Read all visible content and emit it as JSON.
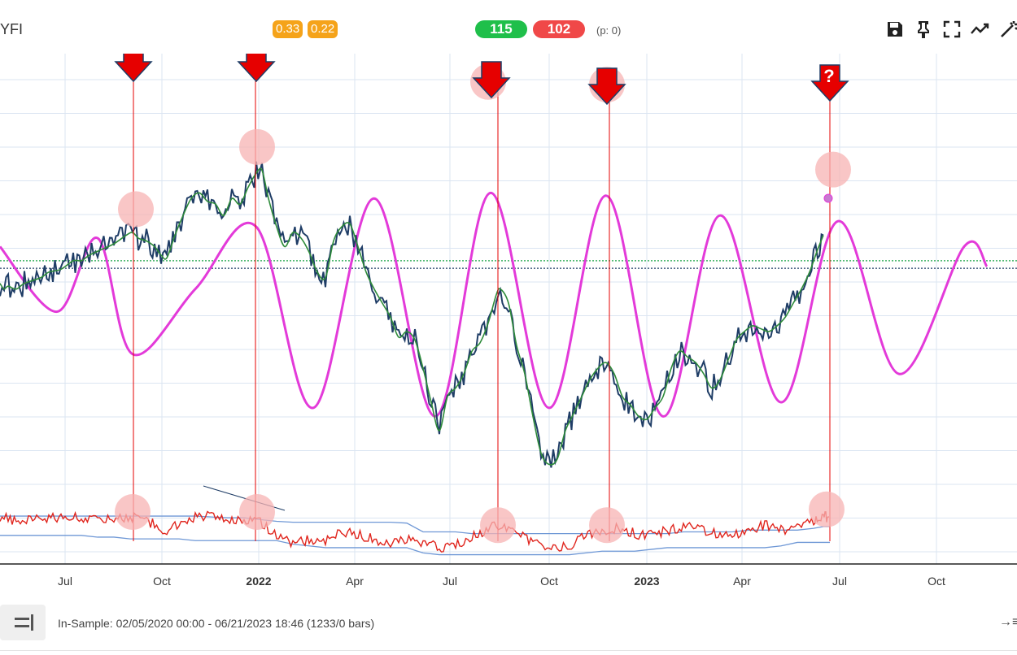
{
  "header": {
    "symbol": "YFI",
    "badges": [
      "0.33",
      "0.22"
    ],
    "long_count": "115",
    "short_count": "102",
    "p_label": "(p: 0)",
    "colors": {
      "orange": "#f5a31a",
      "green": "#1fbf4a",
      "red": "#f04848"
    },
    "toolbar_icons": [
      "save-icon",
      "pin-icon",
      "fullscreen-icon",
      "trend-icon",
      "magic-wand-icon"
    ]
  },
  "footer": {
    "in_sample": "In-Sample: 02/05/2020 00:00 - 06/21/2023 18:46 (1233/0 bars)",
    "menu_icon": "menu-lines-icon",
    "end_icon": "arrow-to-end-icon"
  },
  "chart_data": {
    "type": "line",
    "x_ticks": [
      "Jul",
      "Oct",
      "2022",
      "Apr",
      "Jul",
      "Oct",
      "2023",
      "Apr",
      "Jul",
      "Oct"
    ],
    "bold_ticks": [
      "2022",
      "2023"
    ],
    "colors": {
      "price": "#1f3d66",
      "smooth": "#2e8b3a",
      "cycle": "#e33ad9",
      "oscillator": "#e0251d",
      "bands": "#6f98d6",
      "markers": "#e60000",
      "highlight": "#f7b3b3"
    },
    "series": [
      {
        "values_x": [
          0,
          5,
          10,
          20,
          30,
          50,
          60,
          75,
          90,
          100,
          110,
          125,
          140,
          155,
          163,
          170,
          180,
          190,
          198,
          205,
          215,
          225,
          235,
          245,
          255,
          265,
          275,
          285,
          295,
          305,
          315,
          322,
          330,
          340,
          350,
          360,
          370,
          380,
          390,
          400,
          410,
          420,
          430,
          440,
          450,
          460,
          470,
          480,
          490,
          500,
          510,
          520,
          530,
          540,
          550,
          560,
          570,
          580,
          590,
          600,
          610,
          615,
          625,
          635,
          645,
          655,
          665,
          675,
          685,
          695,
          705,
          715,
          725,
          735,
          745,
          755,
          765,
          775,
          785,
          795,
          805,
          815,
          825,
          835,
          845,
          855,
          865,
          875,
          885,
          895,
          905,
          915,
          925,
          935,
          945,
          955,
          965,
          975,
          985,
          995,
          1005,
          1012
        ],
        "values_y": [
          0.32,
          0.3,
          0.31,
          0.3,
          0.32,
          0.34,
          0.36,
          0.37,
          0.4,
          0.4,
          0.42,
          0.44,
          0.46,
          0.49,
          0.5,
          0.48,
          0.47,
          0.45,
          0.42,
          0.41,
          0.49,
          0.56,
          0.62,
          0.64,
          0.61,
          0.6,
          0.56,
          0.62,
          0.6,
          0.66,
          0.71,
          0.72,
          0.62,
          0.52,
          0.45,
          0.5,
          0.48,
          0.43,
          0.36,
          0.34,
          0.47,
          0.52,
          0.53,
          0.45,
          0.36,
          0.3,
          0.25,
          0.2,
          0.13,
          0.15,
          0.12,
          0.02,
          -0.1,
          -0.2,
          -0.08,
          -0.05,
          0.0,
          0.08,
          0.11,
          0.18,
          0.28,
          0.3,
          0.25,
          0.1,
          0.0,
          -0.15,
          -0.28,
          -0.32,
          -0.3,
          -0.2,
          -0.14,
          -0.08,
          -0.02,
          0.02,
          0.04,
          0.0,
          -0.08,
          -0.11,
          -0.15,
          -0.16,
          -0.12,
          -0.08,
          0.02,
          0.08,
          0.06,
          0.04,
          0.0,
          -0.05,
          -0.02,
          0.05,
          0.12,
          0.15,
          0.17,
          0.16,
          0.15,
          0.17,
          0.2,
          0.25,
          0.3,
          0.36,
          0.44,
          0.49
        ]
      }
    ],
    "cycle": {
      "values_x": [
        0,
        70,
        120,
        163,
        240,
        315,
        385,
        460,
        535,
        603,
        675,
        745,
        815,
        885,
        960,
        1030,
        1105,
        1185,
        1213
      ],
      "values_y": [
        0.45,
        0.22,
        0.48,
        0.07,
        0.3,
        0.52,
        -0.12,
        0.62,
        -0.15,
        0.64,
        -0.12,
        0.63,
        -0.15,
        0.56,
        -0.1,
        0.54,
        0.0,
        0.45,
        0.38
      ]
    },
    "oscillator": {
      "values_x": [
        0,
        20,
        40,
        60,
        80,
        100,
        120,
        140,
        160,
        180,
        200,
        220,
        240,
        260,
        280,
        300,
        320,
        340,
        360,
        380,
        400,
        420,
        440,
        460,
        480,
        500,
        520,
        540,
        560,
        580,
        600,
        620,
        640,
        660,
        680,
        700,
        720,
        740,
        760,
        780,
        800,
        820,
        840,
        860,
        880,
        900,
        920,
        940,
        960,
        980,
        1000,
        1012,
        1020
      ],
      "values_y": [
        0.62,
        0.55,
        0.6,
        0.58,
        0.64,
        0.6,
        0.62,
        0.58,
        0.6,
        0.58,
        0.45,
        0.52,
        0.6,
        0.64,
        0.55,
        0.58,
        0.55,
        0.4,
        0.32,
        0.35,
        0.33,
        0.45,
        0.42,
        0.35,
        0.3,
        0.35,
        0.33,
        0.26,
        0.3,
        0.38,
        0.48,
        0.52,
        0.4,
        0.3,
        0.25,
        0.28,
        0.4,
        0.45,
        0.48,
        0.42,
        0.4,
        0.45,
        0.5,
        0.48,
        0.42,
        0.4,
        0.47,
        0.52,
        0.46,
        0.5,
        0.55,
        0.62,
        0.59
      ],
      "upper_band": [
        0.62,
        0.62,
        0.62,
        0.62,
        0.62,
        0.62,
        0.62,
        0.62,
        0.62,
        0.62,
        0.62,
        0.62,
        0.62,
        0.61,
        0.6,
        0.6,
        0.58,
        0.56,
        0.55,
        0.55,
        0.55,
        0.55,
        0.55,
        0.55,
        0.55,
        0.54,
        0.44,
        0.44,
        0.44,
        0.42,
        0.42,
        0.42,
        0.42,
        0.42,
        0.42,
        0.42,
        0.42,
        0.42,
        0.42,
        0.42,
        0.42,
        0.42,
        0.44,
        0.44,
        0.44,
        0.44,
        0.46,
        0.46,
        0.46,
        0.46,
        0.48,
        0.5,
        0.5
      ],
      "lower_band": [
        0.4,
        0.4,
        0.4,
        0.4,
        0.4,
        0.4,
        0.38,
        0.38,
        0.36,
        0.36,
        0.36,
        0.36,
        0.34,
        0.34,
        0.34,
        0.34,
        0.34,
        0.34,
        0.3,
        0.28,
        0.26,
        0.26,
        0.26,
        0.26,
        0.26,
        0.26,
        0.2,
        0.18,
        0.18,
        0.18,
        0.18,
        0.18,
        0.18,
        0.18,
        0.18,
        0.18,
        0.2,
        0.22,
        0.22,
        0.22,
        0.24,
        0.26,
        0.26,
        0.26,
        0.26,
        0.26,
        0.26,
        0.26,
        0.28,
        0.32,
        0.32,
        0.32,
        0.32
      ]
    },
    "reference_lines": {
      "green_dotted": 0.4,
      "navy_dotted": 0.385
    },
    "markers": [
      {
        "x": 164,
        "label": ""
      },
      {
        "x": 315,
        "label": ""
      },
      {
        "x": 604,
        "label": ""
      },
      {
        "x": 746,
        "label": ""
      },
      {
        "x": 1020,
        "label": "?"
      }
    ],
    "vertical_lines_x": [
      164,
      314,
      612,
      749,
      1020
    ],
    "highlights_price": [
      [
        167,
        0.41
      ],
      [
        316,
        0.63
      ],
      [
        600,
        0.86
      ],
      [
        746,
        0.85
      ],
      [
        1024,
        0.55
      ]
    ],
    "highlights_osc": [
      [
        163,
        0.62
      ],
      [
        316,
        0.62
      ],
      [
        612,
        0.47
      ],
      [
        746,
        0.47
      ],
      [
        1016,
        0.65
      ]
    ],
    "grid": true
  }
}
